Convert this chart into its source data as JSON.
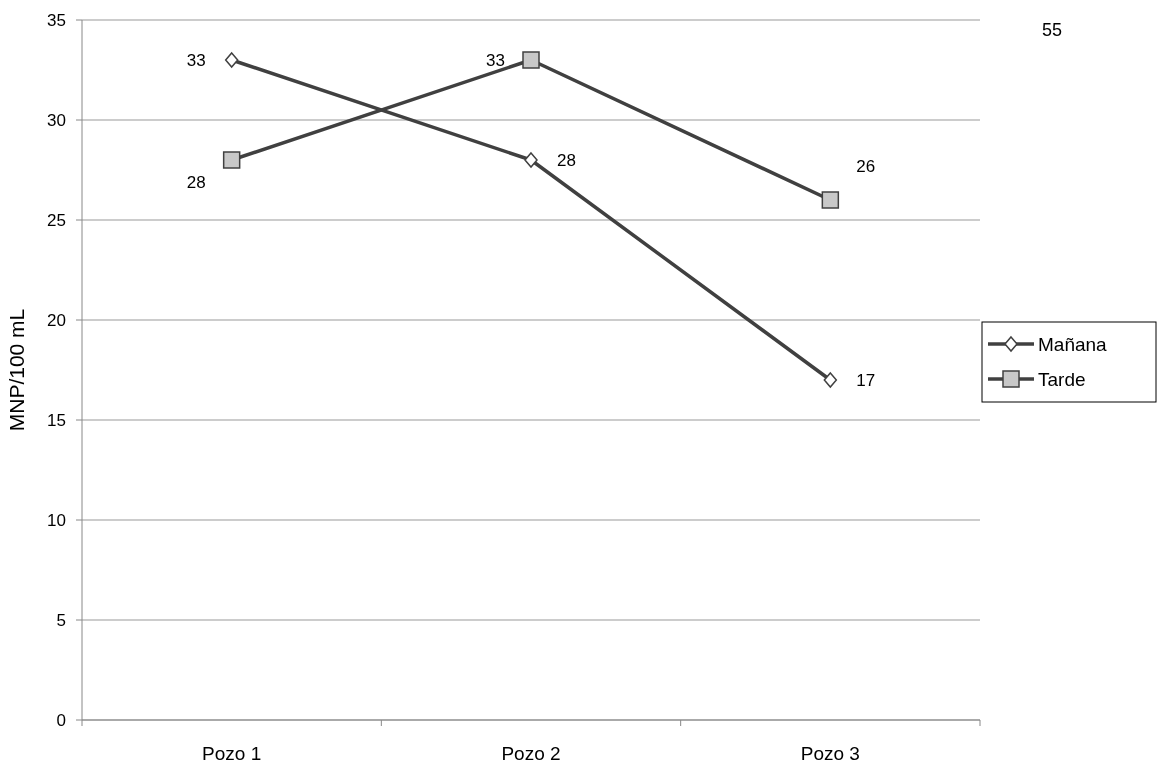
{
  "chart_data": {
    "type": "line",
    "ylabel": "MNP/100 mL",
    "categories": [
      "Pozo 1",
      "Pozo 2",
      "Pozo 3"
    ],
    "series": [
      {
        "name": "Mañana",
        "color": "#404040",
        "marker": "diamond",
        "values": [
          33,
          28,
          17
        ]
      },
      {
        "name": "Tarde",
        "color": "#404040",
        "marker": "square",
        "values": [
          28,
          33,
          26
        ]
      }
    ],
    "ylim": [
      0,
      35
    ],
    "yticks": [
      0,
      5,
      10,
      15,
      20,
      25,
      30,
      35
    ],
    "grid": "y",
    "legend": "right",
    "data_labels": true,
    "annotations": [
      "55"
    ]
  }
}
